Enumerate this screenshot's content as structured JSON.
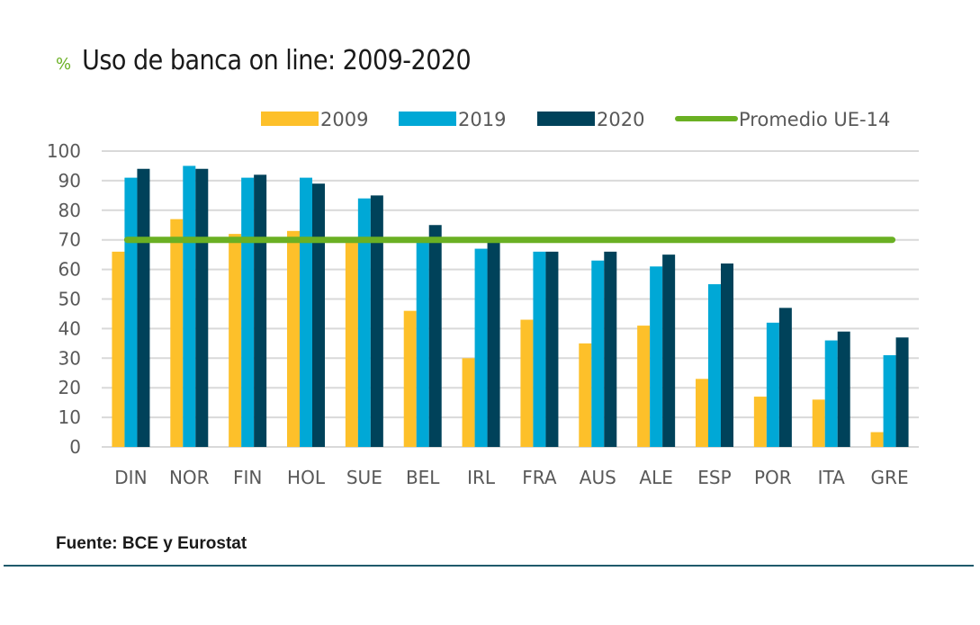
{
  "header": {
    "unit_label": "%",
    "title": "Uso de banca on line: 2009-2020"
  },
  "footer": {
    "source": "Fuente: BCE y Eurostat"
  },
  "colors": {
    "2009": "#fdc02a",
    "2019": "#00a8d6",
    "2020": "#00425a",
    "average": "#6ab023",
    "grid": "#d9d9d9",
    "rule": "#1f5a6b"
  },
  "chart_data": {
    "type": "bar",
    "title": "Uso de banca on line: 2009-2020",
    "ylabel": "%",
    "xlabel": "",
    "ylim": [
      0,
      100
    ],
    "yticks": [
      0,
      10,
      20,
      30,
      40,
      50,
      60,
      70,
      80,
      90,
      100
    ],
    "grid": true,
    "legend_position": "top-right",
    "categories": [
      "DIN",
      "NOR",
      "FIN",
      "HOL",
      "SUE",
      "BEL",
      "IRL",
      "FRA",
      "AUS",
      "ALE",
      "ESP",
      "POR",
      "ITA",
      "GRE"
    ],
    "series": [
      {
        "name": "2009",
        "type": "bar",
        "values": [
          66,
          77,
          72,
          73,
          70,
          46,
          30,
          43,
          35,
          41,
          23,
          17,
          16,
          5
        ]
      },
      {
        "name": "2019",
        "type": "bar",
        "values": [
          91,
          95,
          91,
          91,
          84,
          70,
          67,
          66,
          63,
          61,
          55,
          42,
          36,
          31
        ]
      },
      {
        "name": "2020",
        "type": "bar",
        "values": [
          94,
          94,
          92,
          89,
          85,
          75,
          69,
          66,
          66,
          65,
          62,
          47,
          39,
          37
        ]
      },
      {
        "name": "Promedio UE-14",
        "type": "line",
        "value": 70
      }
    ]
  }
}
